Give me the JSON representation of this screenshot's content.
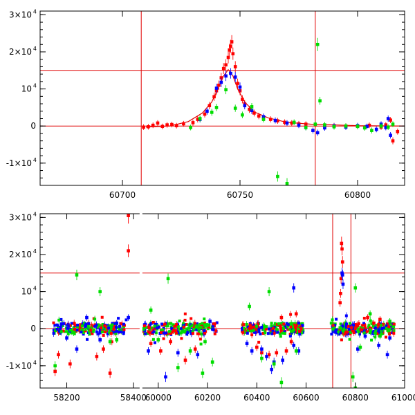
{
  "chart_data": [
    {
      "type": "scatter",
      "panel": "top",
      "xlim": [
        60665,
        60820
      ],
      "ylim": [
        -16000,
        31000
      ],
      "x_ticks": [
        {
          "value": 60700,
          "label": "60700"
        },
        {
          "value": 60750,
          "label": "60750"
        },
        {
          "value": 60800,
          "label": "60800"
        }
      ],
      "y_ticks": [
        {
          "value": -10000,
          "label": "-1×10",
          "exp": "4"
        },
        {
          "value": 0,
          "label": "0",
          "exp": ""
        },
        {
          "value": 10000,
          "label": "10",
          "exp": "4"
        },
        {
          "value": 20000,
          "label": "2×10",
          "exp": "4"
        },
        {
          "value": 30000,
          "label": "3×10",
          "exp": "4"
        }
      ],
      "ref_lines": {
        "vertical": [
          60708,
          60782
        ],
        "horizontal": [
          15000,
          0
        ]
      },
      "model_curve": {
        "name": "",
        "color": "#e00000",
        "points": [
          [
            60710,
            -300
          ],
          [
            60720,
            0
          ],
          [
            60728,
            1200
          ],
          [
            60734,
            3500
          ],
          [
            60738,
            6500
          ],
          [
            60741,
            10500
          ],
          [
            60743,
            13500
          ],
          [
            60745,
            15200
          ],
          [
            60747,
            13500
          ],
          [
            60749,
            10000
          ],
          [
            60752,
            6500
          ],
          [
            60756,
            3800
          ],
          [
            60762,
            2200
          ],
          [
            60770,
            1000
          ],
          [
            60780,
            500
          ],
          [
            60800,
            100
          ],
          [
            60820,
            0
          ]
        ]
      },
      "series": [
        {
          "color": "#ff0000",
          "points": [
            [
              60709,
              -300
            ],
            [
              60711,
              -200
            ],
            [
              60713,
              200
            ],
            [
              60715,
              800
            ],
            [
              60717,
              -100
            ],
            [
              60719,
              300
            ],
            [
              60721,
              400
            ],
            [
              60723,
              100
            ],
            [
              60726,
              600
            ],
            [
              60730,
              900
            ],
            [
              60732,
              1800
            ],
            [
              60735,
              3200
            ],
            [
              60737,
              5500
            ],
            [
              60739,
              7900
            ],
            [
              60740,
              9500
            ],
            [
              60741,
              11000
            ],
            [
              60742,
              13000
            ],
            [
              60743,
              15500
            ],
            [
              60744,
              16500
            ],
            [
              60745,
              18500
            ],
            [
              60745.5,
              20500
            ],
            [
              60746,
              21500
            ],
            [
              60746.5,
              22700
            ],
            [
              60747,
              19500
            ],
            [
              60748,
              16000
            ],
            [
              60749,
              11500
            ],
            [
              60750,
              9500
            ],
            [
              60751,
              7200
            ],
            [
              60752,
              6000
            ],
            [
              60754,
              4500
            ],
            [
              60756,
              3500
            ],
            [
              60758,
              2700
            ],
            [
              60760,
              2200
            ],
            [
              60763,
              1800
            ],
            [
              60766,
              1400
            ],
            [
              60769,
              1000
            ],
            [
              60772,
              800
            ],
            [
              60775,
              600
            ],
            [
              60778,
              500
            ],
            [
              60782,
              300
            ],
            [
              60786,
              200
            ],
            [
              60790,
              100
            ],
            [
              60795,
              0
            ],
            [
              60800,
              -100
            ],
            [
              60805,
              200
            ],
            [
              60810,
              -300
            ],
            [
              60812,
              300
            ],
            [
              60814,
              1600
            ],
            [
              60815,
              -4000
            ],
            [
              60817,
              -1500
            ]
          ]
        },
        {
          "color": "#0000ff",
          "points": [
            [
              60733,
              1800
            ],
            [
              60736,
              4000
            ],
            [
              60740,
              10200
            ],
            [
              60742,
              11800
            ],
            [
              60744,
              13500
            ],
            [
              60746,
              14200
            ],
            [
              60748,
              13200
            ],
            [
              60750,
              10500
            ],
            [
              60752,
              5500
            ],
            [
              60755,
              4200
            ],
            [
              60760,
              2500
            ],
            [
              60765,
              1500
            ],
            [
              60770,
              800
            ],
            [
              60775,
              200
            ],
            [
              60778,
              -400
            ],
            [
              60781,
              -1200
            ],
            [
              60783,
              -1800
            ],
            [
              60786,
              -500
            ],
            [
              60790,
              0
            ],
            [
              60795,
              -300
            ],
            [
              60800,
              100
            ],
            [
              60804,
              -100
            ],
            [
              60808,
              -900
            ],
            [
              60810,
              500
            ],
            [
              60812,
              -400
            ],
            [
              60813,
              2000
            ],
            [
              60814,
              -2500
            ]
          ]
        },
        {
          "color": "#00dd00",
          "points": [
            [
              60729,
              -400
            ],
            [
              60733,
              2000
            ],
            [
              60738,
              3700
            ],
            [
              60740,
              5000
            ],
            [
              60744,
              9800
            ],
            [
              60748,
              4800
            ],
            [
              60751,
              3000
            ],
            [
              60755,
              5200
            ],
            [
              60760,
              1800
            ],
            [
              60766,
              -13600
            ],
            [
              60770,
              -15500
            ],
            [
              60773,
              1000
            ],
            [
              60778,
              -400
            ],
            [
              60782,
              500
            ],
            [
              60783,
              22000
            ],
            [
              60784,
              6800
            ],
            [
              60786,
              300
            ],
            [
              60790,
              -200
            ],
            [
              60795,
              0
            ],
            [
              60800,
              -100
            ],
            [
              60803,
              -500
            ],
            [
              60806,
              -1200
            ],
            [
              60810,
              0
            ],
            [
              60813,
              -300
            ],
            [
              60815,
              500
            ]
          ]
        }
      ]
    },
    {
      "type": "scatter",
      "panel": "bottom",
      "xlim": [
        58120,
        61000
      ],
      "ylim": [
        -16000,
        31000
      ],
      "segments": [
        [
          58120,
          58410
        ],
        [
          58415,
          61000
        ]
      ],
      "x_ticks": [
        {
          "value": 58200,
          "label": "58200"
        },
        {
          "value": 58400,
          "label": "58400"
        },
        {
          "value": 60000,
          "label": "60000"
        },
        {
          "value": 60200,
          "label": "60200"
        },
        {
          "value": 60400,
          "label": "60400"
        },
        {
          "value": 60600,
          "label": "60600"
        },
        {
          "value": 60800,
          "label": "60800"
        },
        {
          "value": 61000,
          "label": "61000"
        }
      ],
      "y_ticks": [
        {
          "value": -10000,
          "label": "-1×10",
          "exp": "4"
        },
        {
          "value": 0,
          "label": "0",
          "exp": ""
        },
        {
          "value": 10000,
          "label": "10",
          "exp": "4"
        },
        {
          "value": 20000,
          "label": "2×10",
          "exp": "4"
        },
        {
          "value": 30000,
          "label": "3×10",
          "exp": "4"
        }
      ],
      "ref_lines": {
        "vertical": [
          60708,
          60782
        ],
        "horizontal": [
          15000,
          0
        ]
      },
      "observing_seasons": [
        {
          "start": 58160,
          "end": 58380
        },
        {
          "start": 59940,
          "end": 60240
        },
        {
          "start": 60340,
          "end": 60590
        },
        {
          "start": 60700,
          "end": 60960
        }
      ],
      "series": [
        {
          "color": "#ff0000",
          "points": [
            [
              58165,
              -11500
            ],
            [
              58175,
              -7000
            ],
            [
              58210,
              -9500
            ],
            [
              58290,
              -7500
            ],
            [
              58310,
              -5500
            ],
            [
              58330,
              -12000
            ],
            [
              58385,
              21000
            ],
            [
              58385,
              30500
            ],
            [
              59970,
              -4000
            ],
            [
              60010,
              -6000
            ],
            [
              60050,
              -3500
            ],
            [
              60110,
              -8500
            ],
            [
              60150,
              -5500
            ],
            [
              60400,
              -5000
            ],
            [
              60420,
              -6500
            ],
            [
              60450,
              -7000
            ],
            [
              60480,
              -6500
            ],
            [
              60520,
              -6000
            ],
            [
              60540,
              -3500
            ],
            [
              60560,
              4000
            ],
            [
              60744,
              23000
            ],
            [
              60746,
              21500
            ],
            [
              60748,
              18000
            ],
            [
              60742,
              13500
            ],
            [
              60740,
              9500
            ],
            [
              60738,
              7000
            ],
            [
              60500,
              3000
            ],
            [
              60850,
              3000
            ],
            [
              60875,
              1500
            ],
            [
              60900,
              2500
            ]
          ]
        },
        {
          "color": "#0000ff",
          "points": [
            [
              58200,
              -2500
            ],
            [
              58230,
              -5500
            ],
            [
              58260,
              3000
            ],
            [
              58300,
              -3000
            ],
            [
              58350,
              1500
            ],
            [
              58385,
              3000
            ],
            [
              59960,
              -6000
            ],
            [
              60030,
              -13000
            ],
            [
              60080,
              -6500
            ],
            [
              60160,
              -7000
            ],
            [
              60210,
              2000
            ],
            [
              60360,
              -4000
            ],
            [
              60380,
              -6000
            ],
            [
              60420,
              -5500
            ],
            [
              60440,
              -7500
            ],
            [
              60460,
              -11000
            ],
            [
              60470,
              -9000
            ],
            [
              60505,
              -8500
            ],
            [
              60550,
              -4500
            ],
            [
              60570,
              -6000
            ],
            [
              60550,
              11000
            ],
            [
              60748,
              14500
            ],
            [
              60750,
              12000
            ],
            [
              60746,
              15000
            ],
            [
              60810,
              -5500
            ],
            [
              60840,
              -2000
            ],
            [
              60895,
              -4500
            ],
            [
              60940,
              -2500
            ],
            [
              60930,
              -7000
            ]
          ]
        },
        {
          "color": "#00dd00",
          "points": [
            [
              58165,
              -10000
            ],
            [
              58230,
              14500
            ],
            [
              58300,
              10000
            ],
            [
              58330,
              -3500
            ],
            [
              58350,
              -3000
            ],
            [
              59970,
              5000
            ],
            [
              60000,
              -3000
            ],
            [
              60040,
              13500
            ],
            [
              60080,
              -10500
            ],
            [
              60130,
              -6000
            ],
            [
              60180,
              -12000
            ],
            [
              60190,
              -3500
            ],
            [
              60220,
              -9000
            ],
            [
              60370,
              6000
            ],
            [
              60420,
              -8000
            ],
            [
              60470,
              -9500
            ],
            [
              60450,
              10000
            ],
            [
              60500,
              -14500
            ],
            [
              60560,
              -6000
            ],
            [
              60800,
              11000
            ],
            [
              60790,
              -13000
            ],
            [
              60800,
              -16000
            ],
            [
              60820,
              -5000
            ],
            [
              60860,
              4000
            ],
            [
              60900,
              -2000
            ],
            [
              60940,
              2000
            ]
          ]
        }
      ]
    }
  ]
}
